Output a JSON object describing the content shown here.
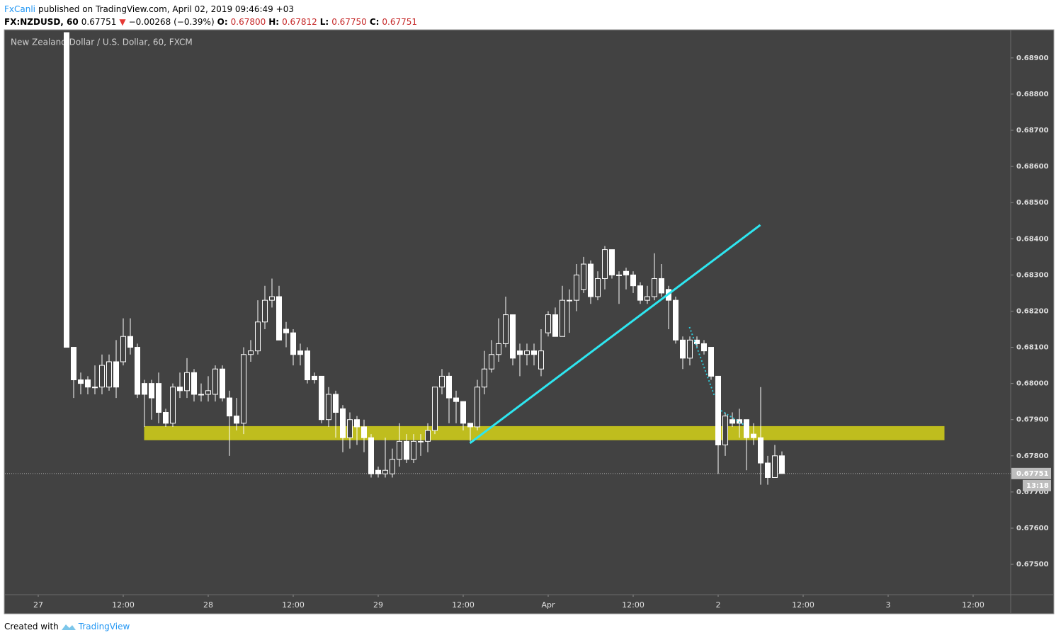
{
  "header": {
    "author": "FxCanli",
    "published": "published on TradingView.com, April 02, 2019 09:46:49 +03",
    "symbol": "FX:NZDUSD, 60",
    "last": "0.67751",
    "arrow": "▼",
    "change": "−0.00268 (−0.39%)",
    "ohlc": [
      {
        "label": "O:",
        "value": "0.67800"
      },
      {
        "label": "H:",
        "value": "0.67812"
      },
      {
        "label": "L:",
        "value": "0.67750"
      },
      {
        "label": "C:",
        "value": "0.67751"
      }
    ]
  },
  "footer": {
    "text": "Created with",
    "brand": "TradingView"
  },
  "chart_data": {
    "type": "candlestick",
    "title": "New Zealand Dollar / U.S. Dollar, 60, FXCM",
    "up_color": "#424242",
    "down_color": "#ffffff",
    "wick_color": "#ffffff",
    "xlim": [
      -8.7,
      133.3
    ],
    "xticks": [
      {
        "value": -4,
        "label": "27"
      },
      {
        "value": 8,
        "label": "12:00"
      },
      {
        "value": 20,
        "label": "28"
      },
      {
        "value": 32,
        "label": "12:00"
      },
      {
        "value": 44,
        "label": "29"
      },
      {
        "value": 56,
        "label": "12:00"
      },
      {
        "value": 68,
        "label": "Apr"
      },
      {
        "value": 80,
        "label": "12:00"
      },
      {
        "value": 92,
        "label": "2"
      },
      {
        "value": 104,
        "label": "12:00"
      },
      {
        "value": 116,
        "label": "3"
      },
      {
        "value": 128,
        "label": "12:00"
      }
    ],
    "ylim": [
      0.67416,
      0.68976
    ],
    "yticks": [
      {
        "value": 0.689,
        "label": "0.68900"
      },
      {
        "value": 0.688,
        "label": "0.68800"
      },
      {
        "value": 0.687,
        "label": "0.68700"
      },
      {
        "value": 0.686,
        "label": "0.68600"
      },
      {
        "value": 0.685,
        "label": "0.68500"
      },
      {
        "value": 0.684,
        "label": "0.68400"
      },
      {
        "value": 0.683,
        "label": "0.68300"
      },
      {
        "value": 0.682,
        "label": "0.68200"
      },
      {
        "value": 0.681,
        "label": "0.68100"
      },
      {
        "value": 0.68,
        "label": "0.68000"
      },
      {
        "value": 0.679,
        "label": "0.67900"
      },
      {
        "value": 0.678,
        "label": "0.67800"
      },
      {
        "value": 0.677,
        "label": "0.67700"
      },
      {
        "value": 0.676,
        "label": "0.67600"
      },
      {
        "value": 0.675,
        "label": "0.67500"
      }
    ],
    "last_price": {
      "value": 0.67751,
      "label": "0.67751"
    },
    "countdown": "13:18",
    "zone": {
      "x": [
        10.95,
        123.95
      ],
      "y": [
        0.67843,
        0.67882
      ],
      "color": "#bfbd1e"
    },
    "lines": [
      {
        "x": [
          56.95,
          97.95
        ],
        "y": [
          0.67835,
          0.68438
        ],
        "color": "#2ee6f0",
        "style": "solid"
      },
      {
        "x": [
          87.95,
          91.45
        ],
        "y": [
          0.68156,
          0.67967
        ],
        "color": "#2ec7d6",
        "style": "dotted"
      },
      {
        "x": [
          92.4,
          95.6
        ],
        "y": [
          0.67925,
          0.67886
        ],
        "color": "#2ec7d6",
        "style": "dotted"
      }
    ],
    "open": [
      0.6897,
      0.681,
      0.6801,
      0.6801,
      0.6799,
      0.6799,
      0.6799,
      0.6806,
      0.6806,
      0.6813,
      0.681,
      0.68,
      0.68,
      0.68,
      0.6792,
      0.6789,
      0.6799,
      0.6798,
      0.6803,
      0.6797,
      0.6797,
      0.6797,
      0.6804,
      0.6796,
      0.6791,
      0.6789,
      0.6808,
      0.6809,
      0.6817,
      0.6823,
      0.6824,
      0.6815,
      0.6814,
      0.6809,
      0.6809,
      0.6802,
      0.6802,
      0.679,
      0.6797,
      0.6793,
      0.6785,
      0.679,
      0.6788,
      0.6785,
      0.6776,
      0.6775,
      0.6775,
      0.6779,
      0.6784,
      0.6779,
      0.6784,
      0.6784,
      0.6787,
      0.6799,
      0.6802,
      0.6796,
      0.6795,
      0.6789,
      0.6788,
      0.6799,
      0.6804,
      0.6808,
      0.6811,
      0.6819,
      0.6809,
      0.6808,
      0.6809,
      0.6804,
      0.6814,
      0.6819,
      0.6813,
      0.6823,
      0.6823,
      0.6826,
      0.6833,
      0.6824,
      0.6829,
      0.6837,
      0.683,
      0.6831,
      0.683,
      0.6827,
      0.6823,
      0.6824,
      0.6829,
      0.6826,
      0.6823,
      0.6812,
      0.6807,
      0.6812,
      0.6811,
      0.681,
      0.6802,
      0.6783,
      0.679,
      0.679,
      0.679,
      0.6786,
      0.6785,
      0.6778,
      0.6774,
      0.678
    ],
    "high": [
      0.6897,
      0.681,
      0.6803,
      0.6802,
      0.6805,
      0.6808,
      0.6808,
      0.6812,
      0.6818,
      0.6818,
      0.6811,
      0.6801,
      0.6801,
      0.6803,
      0.6793,
      0.68,
      0.6803,
      0.6807,
      0.6804,
      0.68,
      0.6802,
      0.6805,
      0.6805,
      0.6798,
      0.6796,
      0.681,
      0.6812,
      0.6823,
      0.6827,
      0.6829,
      0.6827,
      0.6817,
      0.6815,
      0.6811,
      0.681,
      0.6803,
      0.6802,
      0.6799,
      0.6798,
      0.6794,
      0.6792,
      0.6791,
      0.679,
      0.6786,
      0.6777,
      0.6785,
      0.6782,
      0.6789,
      0.6786,
      0.6786,
      0.6786,
      0.6789,
      0.6799,
      0.6804,
      0.6803,
      0.6798,
      0.6795,
      0.6789,
      0.6801,
      0.6809,
      0.6812,
      0.6818,
      0.6824,
      0.6819,
      0.6811,
      0.6811,
      0.6811,
      0.6815,
      0.682,
      0.6821,
      0.6827,
      0.6826,
      0.6833,
      0.6835,
      0.6834,
      0.6831,
      0.6838,
      0.6837,
      0.6831,
      0.6832,
      0.6831,
      0.6828,
      0.6827,
      0.6836,
      0.6833,
      0.6827,
      0.6824,
      0.6813,
      0.6813,
      0.6813,
      0.6812,
      0.681,
      0.6802,
      0.6792,
      0.6792,
      0.6793,
      0.679,
      0.6789,
      0.6799,
      0.678,
      0.6783,
      0.67812
    ],
    "low": [
      0.681,
      0.6796,
      0.6797,
      0.6797,
      0.6797,
      0.6797,
      0.6798,
      0.6796,
      0.6805,
      0.6808,
      0.6796,
      0.6788,
      0.679,
      0.6789,
      0.6788,
      0.6788,
      0.6796,
      0.6796,
      0.6795,
      0.6795,
      0.6795,
      0.6795,
      0.6795,
      0.678,
      0.6787,
      0.6786,
      0.6806,
      0.6808,
      0.6815,
      0.6821,
      0.6812,
      0.681,
      0.6805,
      0.6805,
      0.68,
      0.68,
      0.6789,
      0.6788,
      0.6785,
      0.6781,
      0.6782,
      0.6783,
      0.6781,
      0.6774,
      0.6774,
      0.6774,
      0.6774,
      0.6777,
      0.6778,
      0.6778,
      0.678,
      0.6781,
      0.6786,
      0.6797,
      0.6789,
      0.6789,
      0.6787,
      0.6784,
      0.6787,
      0.6797,
      0.6803,
      0.6806,
      0.681,
      0.6805,
      0.6802,
      0.6805,
      0.6805,
      0.6802,
      0.6813,
      0.6813,
      0.6813,
      0.6814,
      0.682,
      0.6825,
      0.6822,
      0.6823,
      0.6826,
      0.6829,
      0.6822,
      0.6826,
      0.6825,
      0.6822,
      0.6822,
      0.6823,
      0.6824,
      0.6815,
      0.6811,
      0.6804,
      0.6805,
      0.681,
      0.6808,
      0.6801,
      0.6775,
      0.678,
      0.6788,
      0.6785,
      0.6776,
      0.6783,
      0.6772,
      0.6772,
      0.6774,
      0.6775
    ],
    "close": [
      0.681,
      0.6801,
      0.68,
      0.6799,
      0.6799,
      0.6805,
      0.6806,
      0.6799,
      0.6813,
      0.681,
      0.6797,
      0.6797,
      0.6796,
      0.6792,
      0.6789,
      0.6799,
      0.6798,
      0.6803,
      0.6797,
      0.6797,
      0.6798,
      0.6804,
      0.6796,
      0.6791,
      0.6789,
      0.6808,
      0.6809,
      0.6817,
      0.6823,
      0.6824,
      0.6812,
      0.6814,
      0.6808,
      0.6808,
      0.6801,
      0.6801,
      0.679,
      0.6797,
      0.6792,
      0.6785,
      0.679,
      0.6788,
      0.6785,
      0.6775,
      0.6775,
      0.6776,
      0.6779,
      0.6784,
      0.6779,
      0.6784,
      0.6784,
      0.6787,
      0.6799,
      0.6802,
      0.6796,
      0.6795,
      0.6789,
      0.6788,
      0.6799,
      0.6804,
      0.6808,
      0.6811,
      0.6819,
      0.6807,
      0.6808,
      0.6809,
      0.6808,
      0.6809,
      0.6819,
      0.6813,
      0.6823,
      0.6823,
      0.683,
      0.6833,
      0.6824,
      0.6829,
      0.6837,
      0.683,
      0.683,
      0.683,
      0.6827,
      0.6823,
      0.6824,
      0.6829,
      0.6825,
      0.6823,
      0.6812,
      0.6807,
      0.6812,
      0.6811,
      0.6809,
      0.6802,
      0.6783,
      0.6791,
      0.6789,
      0.6789,
      0.6785,
      0.6785,
      0.6778,
      0.6774,
      0.678,
      0.67751
    ]
  }
}
